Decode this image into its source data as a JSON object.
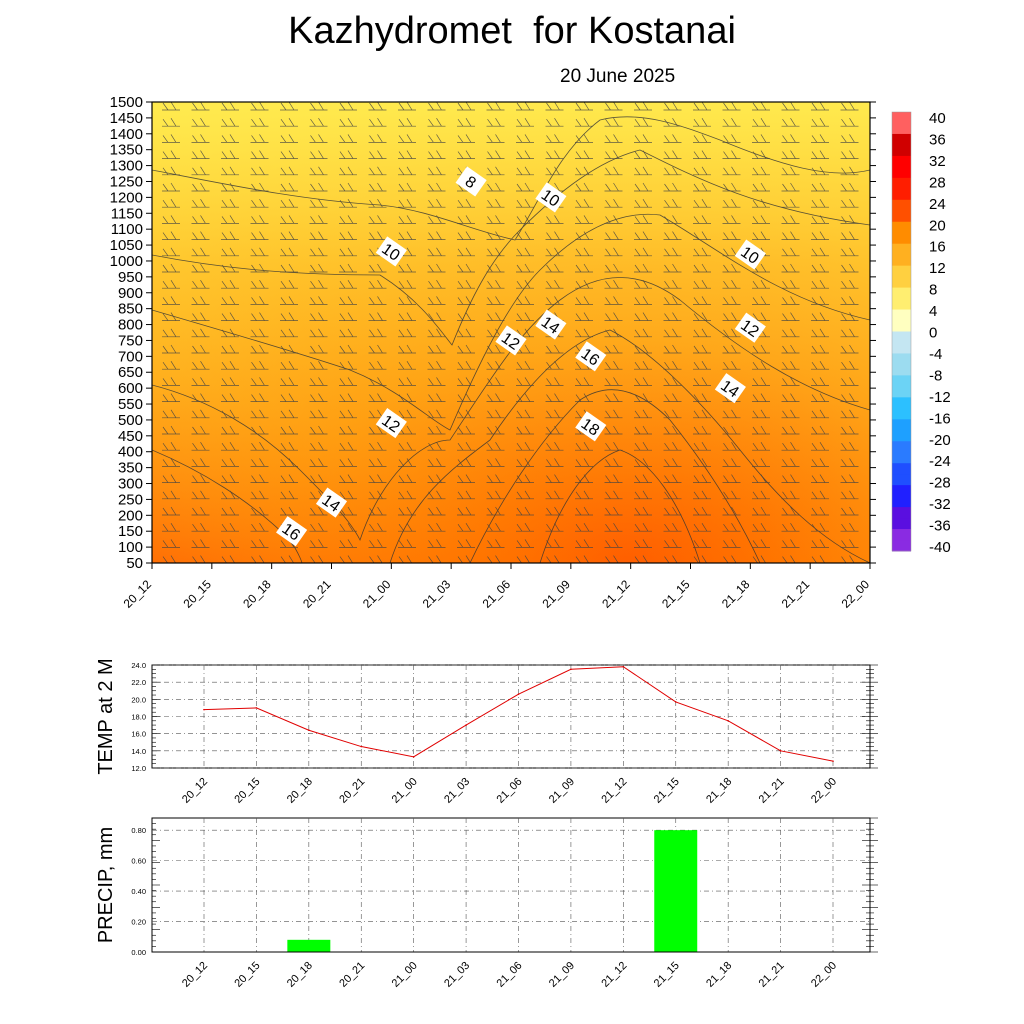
{
  "header": {
    "title": "Kazhydromet  for Kostanai",
    "date": "20 June 2025"
  },
  "chart_data": [
    {
      "type": "heatmap",
      "title": "Kazhydromet  for Kostanai",
      "subtitle": "20 June 2025",
      "x_categories": [
        "20_12",
        "20_15",
        "20_18",
        "20_21",
        "21_00",
        "21_03",
        "21_06",
        "21_09",
        "21_12",
        "21_15",
        "21_18",
        "21_21",
        "22_00"
      ],
      "y_levels": [
        1500,
        1450,
        1400,
        1350,
        1300,
        1250,
        1200,
        1150,
        1100,
        1050,
        1000,
        950,
        900,
        850,
        800,
        750,
        700,
        650,
        600,
        550,
        500,
        450,
        400,
        350,
        300,
        250,
        200,
        150,
        100,
        50
      ],
      "ylim": [
        50,
        1500
      ],
      "colorbar": {
        "labels": [
          "40",
          "36",
          "32",
          "28",
          "24",
          "20",
          "16",
          "12",
          "8",
          "4",
          "0",
          "-4",
          "-8",
          "-12",
          "-16",
          "-20",
          "-24",
          "-28",
          "-32",
          "-36",
          "-40"
        ],
        "range": [
          -40,
          40
        ]
      },
      "contour_labels": [
        {
          "text": "8",
          "x": "21_04",
          "y": 1250
        },
        {
          "text": "10",
          "x": "21_08",
          "y": 1200
        },
        {
          "text": "10",
          "x": "21_00",
          "y": 1030
        },
        {
          "text": "10",
          "x": "21_18",
          "y": 1020
        },
        {
          "text": "12",
          "x": "21_06",
          "y": 750
        },
        {
          "text": "14",
          "x": "21_08",
          "y": 800
        },
        {
          "text": "12",
          "x": "21_18",
          "y": 790
        },
        {
          "text": "16",
          "x": "21_10",
          "y": 700
        },
        {
          "text": "14",
          "x": "21_17",
          "y": 600
        },
        {
          "text": "12",
          "x": "21_00",
          "y": 490
        },
        {
          "text": "18",
          "x": "21_10",
          "y": 480
        },
        {
          "text": "14",
          "x": "20_21",
          "y": 240
        },
        {
          "text": "16",
          "x": "20_19",
          "y": 150
        }
      ],
      "temperature_field_note": "",
      "legend": "colorbar right"
    },
    {
      "type": "line",
      "ylabel": "TEMP at 2 M",
      "categories": [
        "20_12",
        "20_15",
        "20_18",
        "20_21",
        "21_00",
        "21_03",
        "21_06",
        "21_09",
        "21_12",
        "21_15",
        "21_18",
        "21_21",
        "22_00"
      ],
      "values": [
        18.8,
        19.0,
        16.4,
        14.5,
        13.3,
        17.0,
        20.6,
        23.5,
        23.8,
        19.7,
        17.5,
        14.0,
        12.8
      ],
      "ylim": [
        12.0,
        24.0
      ],
      "yticks": [
        "24.0",
        "22.0",
        "20.0",
        "18.0",
        "16.0",
        "14.0",
        "12.0"
      ],
      "color": "#e00000",
      "grid": true
    },
    {
      "type": "bar",
      "ylabel": "PRECIP, mm",
      "categories": [
        "20_12",
        "20_15",
        "20_18",
        "20_21",
        "21_00",
        "21_03",
        "21_06",
        "21_09",
        "21_12",
        "21_15",
        "21_18",
        "21_21",
        "22_00"
      ],
      "values": [
        0.0,
        0.0,
        0.08,
        0.0,
        0.0,
        0.0,
        0.0,
        0.0,
        0.0,
        0.8,
        0.0,
        0.0,
        0.0
      ],
      "ylim": [
        0.0,
        0.88
      ],
      "yticks": [
        "0.80",
        "0.60",
        "0.40",
        "0.20",
        "0.00"
      ],
      "color": "#00ff00",
      "grid": true
    }
  ]
}
